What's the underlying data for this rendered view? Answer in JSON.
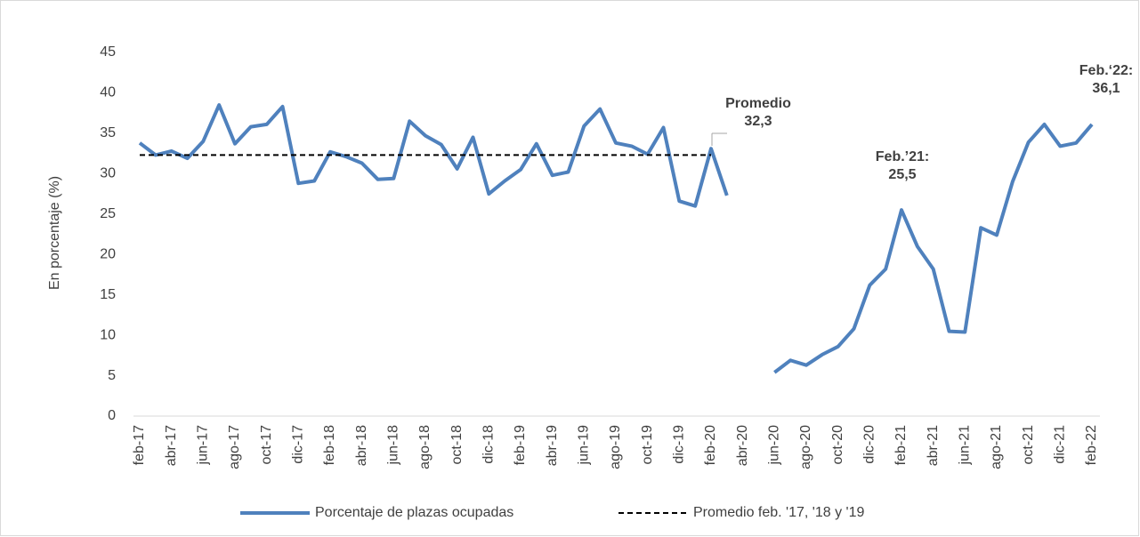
{
  "chart_data": {
    "type": "line",
    "y_label": "En porcentaje (%)",
    "categories": [
      "feb-17",
      null,
      "abr-17",
      null,
      "jun-17",
      null,
      "ago-17",
      null,
      "oct-17",
      null,
      "dic-17",
      null,
      "feb-18",
      null,
      "abr-18",
      null,
      "jun-18",
      null,
      "ago-18",
      null,
      "oct-18",
      null,
      "dic-18",
      null,
      "feb-19",
      null,
      "abr-19",
      null,
      "jun-19",
      null,
      "ago-19",
      null,
      "oct-19",
      null,
      "dic-19",
      null,
      "feb-20",
      null,
      "abr-20",
      null,
      "jun-20",
      null,
      "ago-20",
      null,
      "oct-20",
      null,
      "dic-20",
      null,
      "feb-21",
      null,
      "abr-21",
      null,
      "jun-21",
      null,
      "ago-21",
      null,
      "oct-21",
      null,
      "dic-21",
      null,
      "feb-22"
    ],
    "series": [
      {
        "name": "Porcentaje de plazas ocupadas",
        "color": "#4f81bd",
        "style": "solid",
        "values": [
          33.8,
          32.3,
          32.8,
          31.9,
          34.0,
          38.5,
          33.7,
          35.8,
          36.1,
          38.3,
          28.8,
          29.1,
          32.7,
          32.1,
          31.3,
          29.3,
          29.4,
          36.5,
          34.7,
          33.6,
          30.6,
          34.5,
          27.5,
          29.1,
          30.5,
          33.7,
          29.8,
          30.2,
          35.9,
          38.0,
          33.8,
          33.4,
          32.4,
          35.7,
          26.6,
          26.0,
          33.1,
          27.3,
          null,
          null,
          5.4,
          6.9,
          6.3,
          7.6,
          8.6,
          10.8,
          16.2,
          18.2,
          25.5,
          21.0,
          18.2,
          10.5,
          10.4,
          23.3,
          22.4,
          29.0,
          33.9,
          36.1,
          33.4,
          33.8,
          36.1
        ]
      },
      {
        "name": "Promedio feb. '17, '18 y '19",
        "color": "#000000",
        "style": "dashed",
        "values": [
          32.3,
          32.3,
          32.3,
          32.3,
          32.3,
          32.3,
          32.3,
          32.3,
          32.3,
          32.3,
          32.3,
          32.3,
          32.3,
          32.3,
          32.3,
          32.3,
          32.3,
          32.3,
          32.3,
          32.3,
          32.3,
          32.3,
          32.3,
          32.3,
          32.3,
          32.3,
          32.3,
          32.3,
          32.3,
          32.3,
          32.3,
          32.3,
          32.3,
          32.3,
          32.3,
          32.3,
          32.3,
          null,
          null,
          null,
          null,
          null,
          null,
          null,
          null,
          null,
          null,
          null,
          null,
          null,
          null,
          null,
          null,
          null,
          null,
          null,
          null,
          null,
          null,
          null,
          null
        ]
      }
    ],
    "annotations": [
      {
        "label": "Promedio",
        "value": "32,3"
      },
      {
        "label": "Feb.’21:",
        "value": "25,5"
      },
      {
        "label": "Feb.‘22:",
        "value": "36,1"
      }
    ],
    "ylim": [
      0,
      45
    ],
    "yticks": [
      0,
      5,
      10,
      15,
      20,
      25,
      30,
      35,
      40,
      45
    ],
    "grid": false,
    "legend": "bottom"
  }
}
